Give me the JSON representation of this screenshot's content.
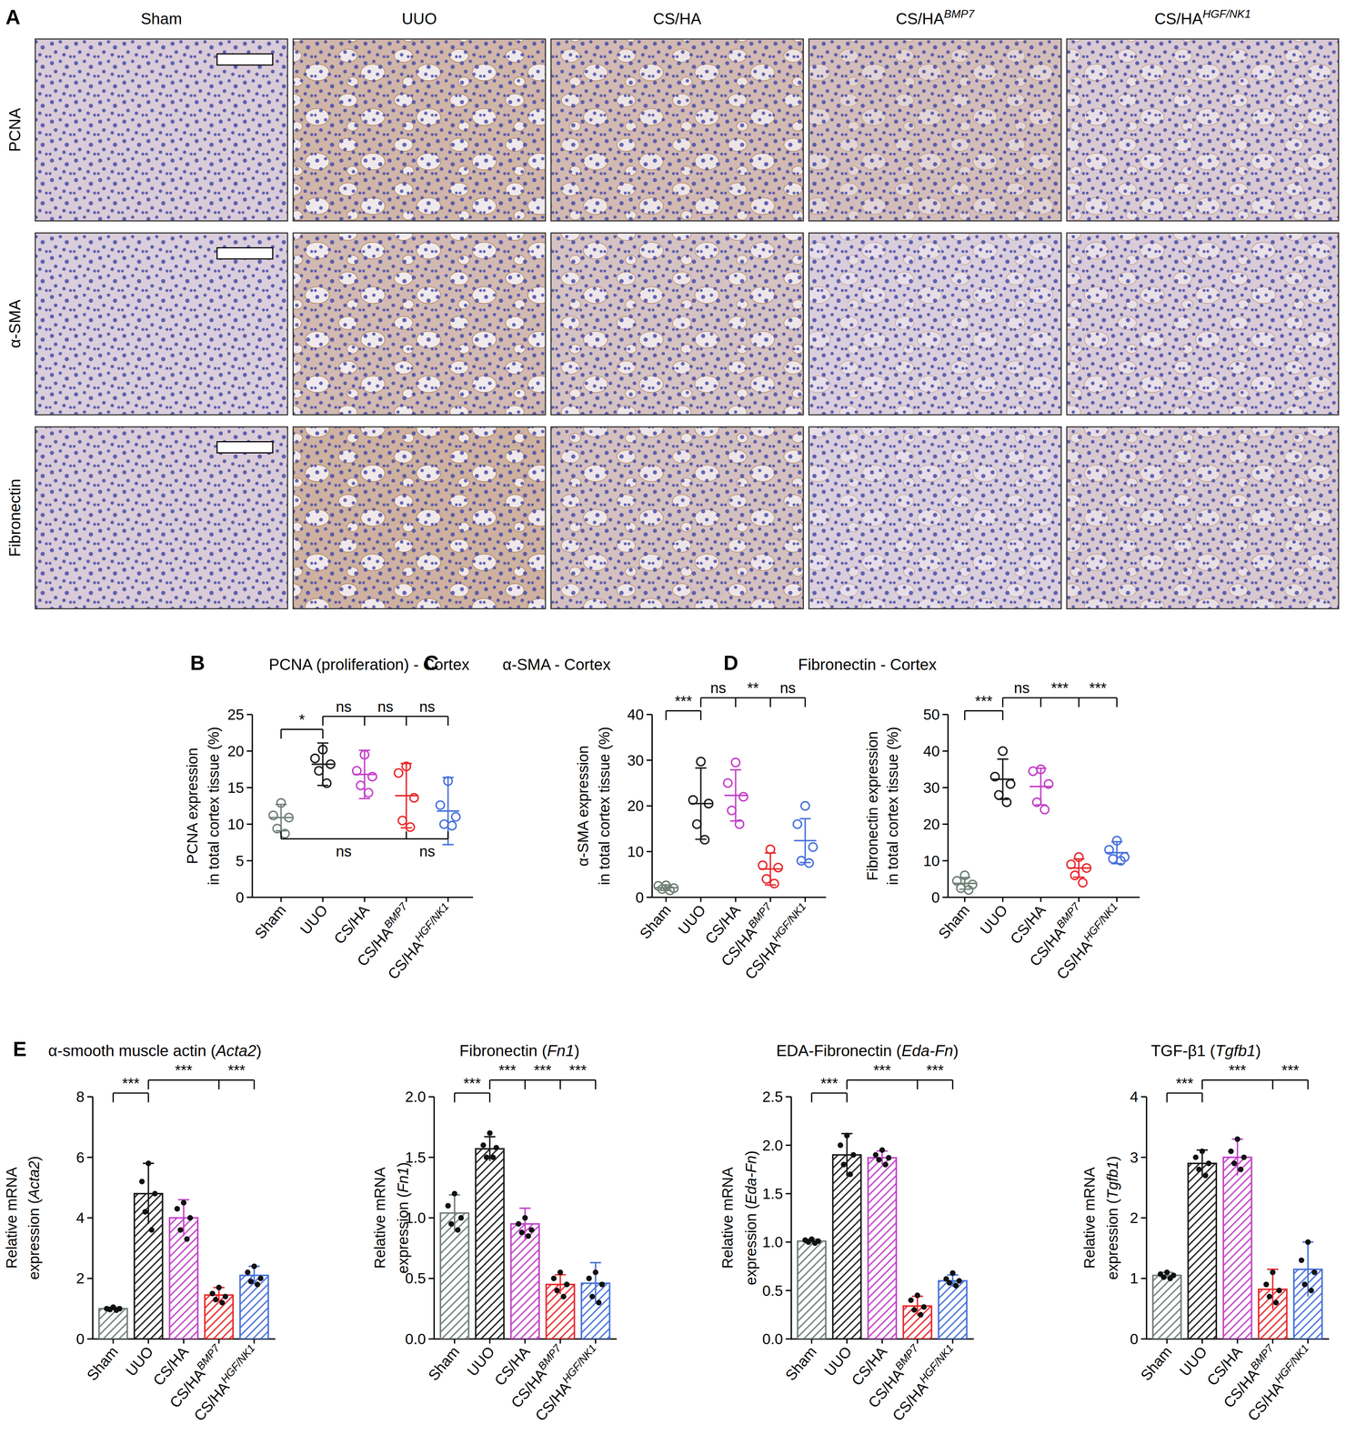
{
  "panel_a": {
    "label": "A",
    "columns": [
      {
        "text": "Sham"
      },
      {
        "text": "UUO"
      },
      {
        "text": "CS/HA"
      },
      {
        "text": "CS/HA",
        "sup": "BMP7"
      },
      {
        "text": "CS/HA",
        "sup": "HGF/NK1"
      }
    ],
    "rows": [
      "PCNA",
      "α-SMA",
      "Fibronectin"
    ]
  },
  "chart_data": [
    {
      "type": "scatter",
      "panel_label": "B",
      "title": "PCNA (proliferation) - Cortex",
      "ylabel": [
        "PCNA expression",
        "in total cortex tissue (%)"
      ],
      "categories": [
        "Sham",
        "UUO",
        "CS/HA",
        "CS/HA",
        "CS/HA"
      ],
      "category_superscripts": [
        null,
        null,
        null,
        "BMP7",
        "HGF/NK1"
      ],
      "colors": [
        "#6f7f76",
        "#1a1a1a",
        "#c33fc9",
        "#e8282b",
        "#4670dc"
      ],
      "points": [
        [
          12.9,
          11.2,
          10.9,
          9.4,
          8.7
        ],
        [
          20.2,
          19.0,
          18.2,
          17.3,
          15.6
        ],
        [
          19.5,
          17.3,
          16.5,
          15.3,
          14.3
        ],
        [
          17.9,
          17.0,
          13.6,
          10.5,
          9.6
        ],
        [
          15.9,
          12.6,
          11.0,
          10.0,
          9.8
        ]
      ],
      "means": [
        10.9,
        18.2,
        16.8,
        13.9,
        11.8
      ],
      "sd": [
        1.8,
        2.9,
        3.3,
        4.4,
        4.6
      ],
      "ylim": [
        0,
        25
      ],
      "yticks": [
        0,
        5,
        10,
        15,
        20,
        25
      ],
      "brackets": [
        {
          "from": 0,
          "to": [
            1
          ],
          "labels": [
            "*"
          ]
        },
        {
          "from": 1,
          "to": [
            2,
            3,
            4
          ],
          "labels": [
            "ns",
            "ns",
            "ns"
          ]
        },
        {
          "from": 0,
          "to": [
            3,
            4
          ],
          "labels": [
            "ns",
            "ns"
          ],
          "side": "below"
        }
      ]
    },
    {
      "type": "scatter",
      "panel_label": "C",
      "title": "α-SMA - Cortex",
      "ylabel": [
        "α-SMA expression",
        "in total cortex tissue (%)"
      ],
      "categories": [
        "Sham",
        "UUO",
        "CS/HA",
        "CS/HA",
        "CS/HA"
      ],
      "category_superscripts": [
        null,
        null,
        null,
        "BMP7",
        "HGF/NK1"
      ],
      "colors": [
        "#6f7f76",
        "#1a1a1a",
        "#c33fc9",
        "#e8282b",
        "#4670dc"
      ],
      "points": [
        [
          2.6,
          2.5,
          2.0,
          1.8,
          1.5
        ],
        [
          29.7,
          21.3,
          20.5,
          16.0,
          12.6
        ],
        [
          29.5,
          25.0,
          22.0,
          19.0,
          16.0
        ],
        [
          10.5,
          7.0,
          6.5,
          4.0,
          3.0
        ],
        [
          20.0,
          16.0,
          11.0,
          8.0,
          7.5
        ]
      ],
      "means": [
        2.1,
        20.5,
        22.3,
        6.2,
        12.4
      ],
      "sd": [
        0.6,
        7.8,
        5.6,
        3.5,
        4.8
      ],
      "ylim": [
        0,
        40
      ],
      "yticks": [
        0,
        10,
        20,
        30,
        40
      ],
      "brackets": [
        {
          "from": 0,
          "to": [
            1
          ],
          "labels": [
            "***"
          ]
        },
        {
          "from": 1,
          "to": [
            2,
            3,
            4
          ],
          "labels": [
            "ns",
            "**",
            "ns"
          ]
        }
      ]
    },
    {
      "type": "scatter",
      "panel_label": "D",
      "title": "Fibronectin - Cortex",
      "ylabel": [
        "Fibronectin expression",
        "in total cortex tissue (%)"
      ],
      "categories": [
        "Sham",
        "UUO",
        "CS/HA",
        "CS/HA",
        "CS/HA"
      ],
      "category_superscripts": [
        null,
        null,
        null,
        "BMP7",
        "HGF/NK1"
      ],
      "colors": [
        "#6f7f76",
        "#1a1a1a",
        "#c33fc9",
        "#e8282b",
        "#4670dc"
      ],
      "points": [
        [
          6.0,
          4.5,
          3.5,
          2.5,
          2.0
        ],
        [
          40.0,
          33.0,
          31.0,
          28.0,
          26.0
        ],
        [
          35.0,
          34.5,
          31.0,
          26.0,
          24.0
        ],
        [
          11.0,
          9.0,
          8.0,
          6.0,
          4.0
        ],
        [
          15.5,
          13.0,
          11.0,
          10.5,
          10.0
        ]
      ],
      "means": [
        3.8,
        32.3,
        30.3,
        8.0,
        12.2
      ],
      "sd": [
        1.6,
        5.5,
        5.0,
        2.5,
        3.0
      ],
      "ylim": [
        0,
        50
      ],
      "yticks": [
        0,
        10,
        20,
        30,
        40,
        50
      ],
      "brackets": [
        {
          "from": 0,
          "to": [
            1
          ],
          "labels": [
            "***"
          ]
        },
        {
          "from": 1,
          "to": [
            2,
            3,
            4
          ],
          "labels": [
            "ns",
            "***",
            "***"
          ]
        }
      ]
    },
    {
      "type": "bar",
      "panel_label": "E",
      "title": "α-smooth muscle actin (Acta2)",
      "italic": "Acta2",
      "ylabel": [
        "Relative mRNA",
        "expression (Acta2)"
      ],
      "categories": [
        "Sham",
        "UUO",
        "CS/HA",
        "CS/HA",
        "CS/HA"
      ],
      "category_superscripts": [
        null,
        null,
        null,
        "BMP7",
        "HGF/NK1"
      ],
      "colors": [
        "#6f7f76",
        "#1a1a1a",
        "#c33fc9",
        "#e8282b",
        "#4670dc"
      ],
      "values": [
        1.0,
        4.8,
        4.0,
        1.45,
        2.1
      ],
      "sd": [
        0.05,
        1.0,
        0.6,
        0.25,
        0.3
      ],
      "points": [
        [
          1.05,
          1.0,
          1.0,
          0.97,
          0.95
        ],
        [
          5.8,
          5.2,
          4.8,
          4.2,
          3.6
        ],
        [
          4.5,
          4.3,
          4.0,
          3.6,
          3.3
        ],
        [
          1.7,
          1.5,
          1.4,
          1.3,
          1.2
        ],
        [
          2.4,
          2.2,
          2.0,
          1.9,
          1.8
        ]
      ],
      "ylim": [
        0,
        8
      ],
      "yticks": [
        0,
        2,
        4,
        6,
        8
      ],
      "brackets": [
        {
          "from": 0,
          "to": [
            1
          ],
          "labels": [
            "***"
          ]
        },
        {
          "from": 1,
          "to": [
            3,
            4
          ],
          "labels": [
            "***",
            "***"
          ]
        }
      ]
    },
    {
      "type": "bar",
      "title": "Fibronectin (Fn1)",
      "italic": "Fn1",
      "ylabel": [
        "Relative mRNA",
        "expression (Fn1)"
      ],
      "categories": [
        "Sham",
        "UUO",
        "CS/HA",
        "CS/HA",
        "CS/HA"
      ],
      "category_superscripts": [
        null,
        null,
        null,
        "BMP7",
        "HGF/NK1"
      ],
      "colors": [
        "#6f7f76",
        "#1a1a1a",
        "#c33fc9",
        "#e8282b",
        "#4670dc"
      ],
      "values": [
        1.04,
        1.57,
        0.95,
        0.45,
        0.46
      ],
      "sd": [
        0.15,
        0.1,
        0.13,
        0.08,
        0.17
      ],
      "points": [
        [
          1.2,
          1.1,
          1.0,
          0.95,
          0.9
        ],
        [
          1.7,
          1.6,
          1.58,
          1.5,
          1.5
        ],
        [
          1.0,
          0.95,
          0.9,
          0.88,
          0.85
        ],
        [
          0.55,
          0.5,
          0.45,
          0.4,
          0.35
        ],
        [
          0.55,
          0.5,
          0.45,
          0.35,
          0.3
        ]
      ],
      "ylim": [
        0,
        2
      ],
      "yticks": [
        {
          "value": 0,
          "label": "0.0"
        },
        {
          "value": 0.5,
          "label": "0.5"
        },
        {
          "value": 1,
          "label": "1.0"
        },
        {
          "value": 1.5,
          "label": "1.5"
        },
        {
          "value": 2,
          "label": "2.0"
        }
      ],
      "brackets": [
        {
          "from": 0,
          "to": [
            1
          ],
          "labels": [
            "***"
          ]
        },
        {
          "from": 1,
          "to": [
            2,
            3,
            4
          ],
          "labels": [
            "***",
            "***",
            "***"
          ]
        }
      ]
    },
    {
      "type": "bar",
      "title": "EDA-Fibronectin (Eda-Fn)",
      "italic": "Eda-Fn",
      "ylabel": [
        "Relative mRNA",
        "expression (Eda-Fn)"
      ],
      "categories": [
        "Sham",
        "UUO",
        "CS/HA",
        "CS/HA",
        "CS/HA"
      ],
      "category_superscripts": [
        null,
        null,
        null,
        "BMP7",
        "HGF/NK1"
      ],
      "colors": [
        "#6f7f76",
        "#1a1a1a",
        "#c33fc9",
        "#e8282b",
        "#4670dc"
      ],
      "values": [
        1.01,
        1.9,
        1.87,
        0.34,
        0.6
      ],
      "sd": [
        0.02,
        0.22,
        0.07,
        0.1,
        0.06
      ],
      "points": [
        [
          1.03,
          1.02,
          1.01,
          1.0,
          0.99
        ],
        [
          2.1,
          2.0,
          1.9,
          1.8,
          1.7
        ],
        [
          1.95,
          1.9,
          1.87,
          1.85,
          1.8
        ],
        [
          0.45,
          0.4,
          0.33,
          0.3,
          0.25
        ],
        [
          0.68,
          0.62,
          0.6,
          0.58,
          0.55
        ]
      ],
      "ylim": [
        0,
        2.5
      ],
      "yticks": [
        {
          "value": 0,
          "label": "0.0"
        },
        {
          "value": 0.5,
          "label": "0.5"
        },
        {
          "value": 1,
          "label": "1.0"
        },
        {
          "value": 1.5,
          "label": "1.5"
        },
        {
          "value": 2,
          "label": "2.0"
        },
        {
          "value": 2.5,
          "label": "2.5"
        }
      ],
      "brackets": [
        {
          "from": 0,
          "to": [
            1
          ],
          "labels": [
            "***"
          ]
        },
        {
          "from": 1,
          "to": [
            3,
            4
          ],
          "labels": [
            "***",
            "***"
          ]
        }
      ]
    },
    {
      "type": "bar",
      "title": "TGF-β1 (Tgfb1)",
      "italic": "Tgfb1",
      "ylabel": [
        "Relative mRNA",
        "expression (Tgfb1)"
      ],
      "categories": [
        "Sham",
        "UUO",
        "CS/HA",
        "CS/HA",
        "CS/HA"
      ],
      "category_superscripts": [
        null,
        null,
        null,
        "BMP7",
        "HGF/NK1"
      ],
      "colors": [
        "#6f7f76",
        "#1a1a1a",
        "#c33fc9",
        "#e8282b",
        "#4670dc"
      ],
      "values": [
        1.05,
        2.9,
        3.0,
        0.82,
        1.15
      ],
      "sd": [
        0.05,
        0.22,
        0.3,
        0.33,
        0.45
      ],
      "points": [
        [
          1.1,
          1.07,
          1.05,
          1.02,
          1.0
        ],
        [
          3.1,
          3.0,
          2.9,
          2.8,
          2.7
        ],
        [
          3.3,
          3.1,
          3.0,
          2.9,
          2.8
        ],
        [
          1.1,
          0.9,
          0.8,
          0.7,
          0.6
        ],
        [
          1.6,
          1.3,
          1.1,
          0.9,
          0.8
        ]
      ],
      "ylim": [
        0,
        4
      ],
      "yticks": [
        0,
        1,
        2,
        3,
        4
      ],
      "brackets": [
        {
          "from": 0,
          "to": [
            1
          ],
          "labels": [
            "***"
          ]
        },
        {
          "from": 1,
          "to": [
            3,
            4
          ],
          "labels": [
            "***",
            "***"
          ]
        }
      ]
    }
  ]
}
